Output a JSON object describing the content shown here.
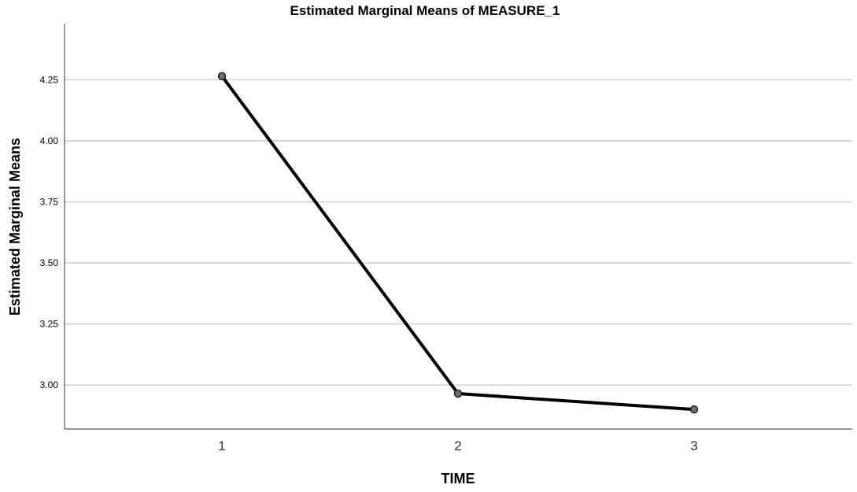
{
  "chart_data": {
    "type": "line",
    "title": "Estimated Marginal Means of MEASURE_1",
    "xlabel": "TIME",
    "ylabel": "Estimated Marginal Means",
    "categories": [
      "1",
      "2",
      "3"
    ],
    "series": [
      {
        "values": [
          4.265,
          2.965,
          2.9
        ]
      }
    ],
    "yticks": [
      "3.00",
      "3.25",
      "3.50",
      "3.75",
      "4.00",
      "4.25"
    ],
    "ylim": [
      2.82,
      4.48
    ],
    "grid": "horizontal",
    "legend": "none",
    "colors": {
      "line": "#000000",
      "marker_fill": "#6e6e6e",
      "grid": "#c8c8c8",
      "axis": "#333333"
    }
  }
}
